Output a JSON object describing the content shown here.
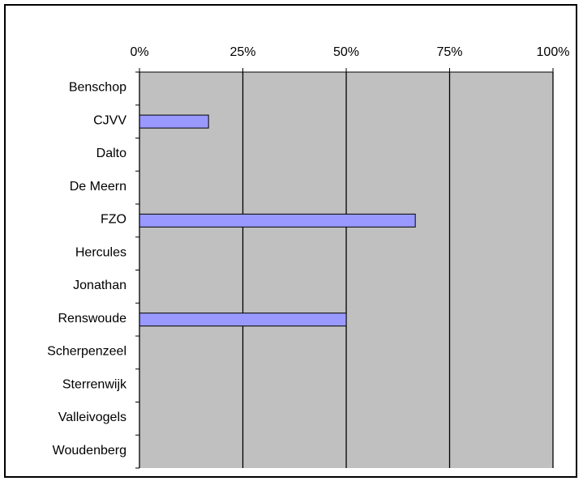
{
  "chart_data": {
    "type": "bar",
    "orientation": "horizontal",
    "categories": [
      "Benschop",
      "CJVV",
      "Dalto",
      "De Meern",
      "FZO",
      "Hercules",
      "Jonathan",
      "Renswoude",
      "Scherpenzeel",
      "Sterrenwijk",
      "Valleivogels",
      "Woudenberg"
    ],
    "values": [
      0,
      0.167,
      0,
      0,
      0.667,
      0,
      0,
      0.5,
      0,
      0,
      0,
      0
    ],
    "xlim": [
      0,
      1
    ],
    "x_ticks": [
      "0%",
      "25%",
      "50%",
      "75%",
      "100%"
    ],
    "x_axis_position": "top",
    "grid": true,
    "title": "",
    "xlabel": "",
    "ylabel": "",
    "colors": {
      "plot_background": "#c0c0c0",
      "bar_fill": "#9999ff",
      "bar_stroke": "#000000",
      "gridline": "#000000"
    }
  }
}
